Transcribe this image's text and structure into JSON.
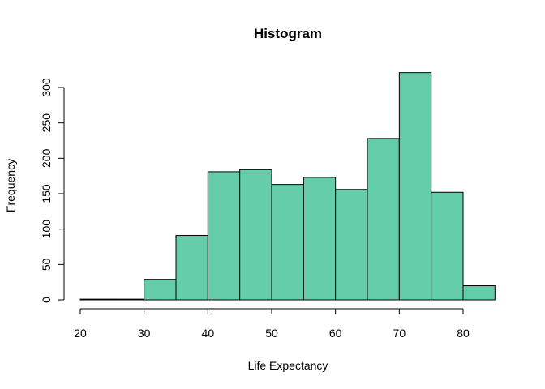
{
  "chart_data": {
    "type": "bar",
    "title": "Histogram",
    "xlabel": "Life Expectancy",
    "ylabel": "Frequency",
    "bin_edges": [
      20,
      25,
      30,
      35,
      40,
      45,
      50,
      55,
      60,
      65,
      70,
      75,
      80,
      85
    ],
    "values": [
      1,
      1,
      29,
      91,
      181,
      184,
      163,
      173,
      156,
      228,
      321,
      152,
      20
    ],
    "xlim": [
      20,
      85
    ],
    "ylim": [
      0,
      320
    ],
    "xticks": [
      20,
      30,
      40,
      50,
      60,
      70,
      80
    ],
    "yticks": [
      0,
      50,
      100,
      150,
      200,
      250,
      300
    ],
    "bar_color": "#66CDAA",
    "grid": false,
    "legend": "none"
  }
}
